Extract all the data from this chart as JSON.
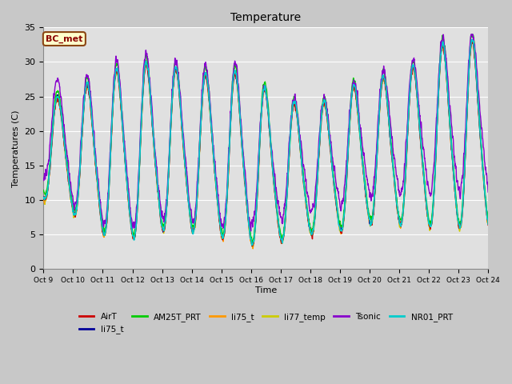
{
  "title": "Temperature",
  "xlabel": "Time",
  "ylabel": "Temperatures (C)",
  "ylim": [
    0,
    35
  ],
  "xlim": [
    0,
    15
  ],
  "xtick_labels": [
    "Oct 9",
    "Oct 10",
    "Oct 11",
    "Oct 12",
    "Oct 13",
    "Oct 14",
    "Oct 15",
    "Oct 16",
    "Oct 17",
    "Oct 18",
    "Oct 19",
    "Oct 20",
    "Oct 21",
    "Oct 22",
    "Oct 23",
    "Oct 24"
  ],
  "ytick_values": [
    0,
    5,
    10,
    15,
    20,
    25,
    30,
    35
  ],
  "fig_bg_color": "#c8c8c8",
  "plot_bg_color": "#e0e0e0",
  "grid_color": "#ffffff",
  "annotation_text": "BC_met",
  "annotation_bg": "#ffffcc",
  "annotation_border": "#8B4513",
  "series": [
    {
      "label": "AirT",
      "color": "#cc0000",
      "lw": 1.0,
      "zorder": 5
    },
    {
      "label": "li75_t",
      "color": "#000099",
      "lw": 1.0,
      "zorder": 4
    },
    {
      "label": "AM25T_PRT",
      "color": "#00cc00",
      "lw": 1.0,
      "zorder": 6
    },
    {
      "label": "li75_t",
      "color": "#ff9900",
      "lw": 1.0,
      "zorder": 3
    },
    {
      "label": "li77_temp",
      "color": "#cccc00",
      "lw": 1.0,
      "zorder": 2
    },
    {
      "label": "Tsonic",
      "color": "#8800cc",
      "lw": 1.0,
      "zorder": 7
    },
    {
      "label": "NR01_PRT",
      "color": "#00cccc",
      "lw": 1.2,
      "zorder": 8
    }
  ]
}
